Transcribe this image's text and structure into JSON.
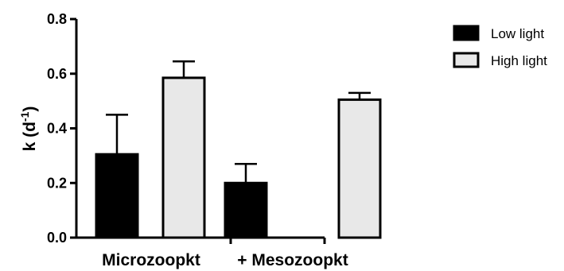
{
  "chart_data": {
    "type": "bar",
    "categories": [
      "Microzoopkt",
      "+ Mesozoopkt"
    ],
    "series": [
      {
        "name": "Low light",
        "values": [
          0.305,
          0.2
        ],
        "errors": [
          0.145,
          0.07
        ],
        "color": "#000000"
      },
      {
        "name": "High light",
        "values": [
          0.585,
          0.505
        ],
        "errors": [
          0.06,
          0.025
        ],
        "color": "#e8e8e8"
      }
    ],
    "ylabel_main": "k (d",
    "ylabel_sup": "-1",
    "ylabel_close": ")",
    "ylim": [
      0,
      0.8
    ],
    "yticks": [
      "0.0",
      "0.2",
      "0.4",
      "0.6",
      "0.8"
    ],
    "ytick_values": [
      0,
      0.2,
      0.4,
      0.6,
      0.8
    ],
    "grid": false,
    "legend_position": "top-right"
  }
}
